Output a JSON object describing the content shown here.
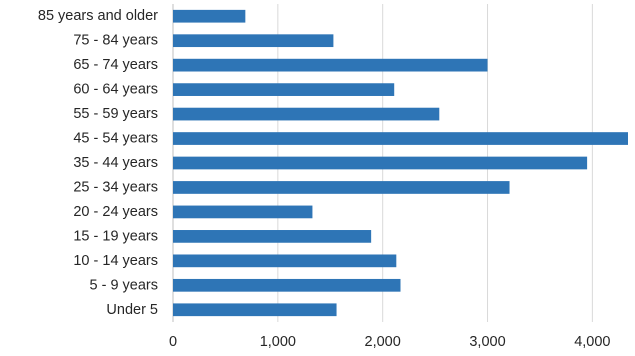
{
  "chart_data": {
    "type": "bar",
    "orientation": "horizontal",
    "title": "",
    "xlabel": "",
    "ylabel": "",
    "categories": [
      "85 years and older",
      "75 - 84 years",
      "65 - 74 years",
      "60 - 64 years",
      "55 - 59 years",
      "45 - 54 years",
      "35 - 44 years",
      "25 - 34 years",
      "20 - 24 years",
      "15 - 19 years",
      "10 - 14 years",
      "5 - 9 years",
      "Under 5"
    ],
    "values": [
      690,
      1530,
      3000,
      2110,
      2540,
      4340,
      3950,
      3210,
      1330,
      1890,
      2130,
      2170,
      1560
    ],
    "xlim": [
      0,
      4340
    ],
    "x_ticks": [
      0,
      1000,
      2000,
      3000,
      4000
    ],
    "x_tick_labels": [
      "0",
      "1,000",
      "2,000",
      "3,000",
      "4,000"
    ],
    "grid": "vertical",
    "legend": "none",
    "colors": {
      "bar": "#2e75b6",
      "grid": "#d9d9d9",
      "text": "#262626"
    }
  }
}
